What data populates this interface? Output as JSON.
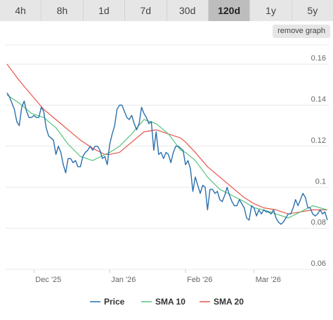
{
  "range_buttons": [
    {
      "label": "4h",
      "active": false
    },
    {
      "label": "8h",
      "active": false
    },
    {
      "label": "1d",
      "active": false
    },
    {
      "label": "7d",
      "active": false
    },
    {
      "label": "30d",
      "active": false
    },
    {
      "label": "120d",
      "active": true
    },
    {
      "label": "1y",
      "active": false
    },
    {
      "label": "5y",
      "active": false
    }
  ],
  "remove_graph_label": "remove graph",
  "colors": {
    "price": "#2a6fad",
    "sma10": "#55c27f",
    "sma20": "#e8534a",
    "grid": "#e8e8e8"
  },
  "chart_data": {
    "type": "line",
    "title": "",
    "xlabel": "",
    "ylabel": "",
    "ylim": [
      0.06,
      0.17
    ],
    "xlim": [
      "2025-11-20",
      "2026-03-31"
    ],
    "y_ticks": [
      0.06,
      0.08,
      0.1,
      0.12,
      0.14,
      0.16
    ],
    "y_tick_labels": [
      "0.06",
      "0.08",
      "0.1",
      "0.12",
      "0.14",
      "0.16"
    ],
    "x_ticks": [
      "2025-12-01",
      "2026-01-01",
      "2026-02-01",
      "2026-03-01"
    ],
    "x_tick_labels": [
      "Dec '25",
      "Jan '26",
      "Feb '26",
      "Mar '26"
    ],
    "legend_position": "bottom-center",
    "grid": true,
    "series": [
      {
        "name": "Price",
        "points": [
          [
            "2025-11-20",
            0.146
          ],
          [
            "2025-11-21",
            0.144
          ],
          [
            "2025-11-22",
            0.141
          ],
          [
            "2025-11-23",
            0.138
          ],
          [
            "2025-11-24",
            0.132
          ],
          [
            "2025-11-25",
            0.13
          ],
          [
            "2025-11-26",
            0.139
          ],
          [
            "2025-11-27",
            0.142
          ],
          [
            "2025-11-28",
            0.137
          ],
          [
            "2025-11-29",
            0.134
          ],
          [
            "2025-11-30",
            0.134
          ],
          [
            "2025-12-01",
            0.135
          ],
          [
            "2025-12-02",
            0.134
          ],
          [
            "2025-12-03",
            0.134
          ],
          [
            "2025-12-04",
            0.139
          ],
          [
            "2025-12-05",
            0.137
          ],
          [
            "2025-12-06",
            0.129
          ],
          [
            "2025-12-07",
            0.125
          ],
          [
            "2025-12-08",
            0.124
          ],
          [
            "2025-12-09",
            0.123
          ],
          [
            "2025-12-10",
            0.116
          ],
          [
            "2025-12-11",
            0.12
          ],
          [
            "2025-12-12",
            0.117
          ],
          [
            "2025-12-13",
            0.111
          ],
          [
            "2025-12-14",
            0.107
          ],
          [
            "2025-12-15",
            0.114
          ],
          [
            "2025-12-16",
            0.114
          ],
          [
            "2025-12-17",
            0.112
          ],
          [
            "2025-12-18",
            0.113
          ],
          [
            "2025-12-19",
            0.11
          ],
          [
            "2025-12-20",
            0.11
          ],
          [
            "2025-12-21",
            0.115
          ],
          [
            "2025-12-22",
            0.117
          ],
          [
            "2025-12-23",
            0.118
          ],
          [
            "2025-12-24",
            0.12
          ],
          [
            "2025-12-25",
            0.118
          ],
          [
            "2025-12-26",
            0.12
          ],
          [
            "2025-12-27",
            0.12
          ],
          [
            "2025-12-28",
            0.118
          ],
          [
            "2025-12-29",
            0.114
          ],
          [
            "2025-12-30",
            0.115
          ],
          [
            "2025-12-31",
            0.111
          ],
          [
            "2026-01-01",
            0.121
          ],
          [
            "2026-01-02",
            0.126
          ],
          [
            "2026-01-03",
            0.13
          ],
          [
            "2026-01-04",
            0.138
          ],
          [
            "2026-01-05",
            0.14
          ],
          [
            "2026-01-06",
            0.14
          ],
          [
            "2026-01-07",
            0.137
          ],
          [
            "2026-01-08",
            0.134
          ],
          [
            "2026-01-09",
            0.133
          ],
          [
            "2026-01-10",
            0.135
          ],
          [
            "2026-01-11",
            0.131
          ],
          [
            "2026-01-12",
            0.128
          ],
          [
            "2026-01-13",
            0.131
          ],
          [
            "2026-01-14",
            0.139
          ],
          [
            "2026-01-15",
            0.136
          ],
          [
            "2026-01-16",
            0.134
          ],
          [
            "2026-01-17",
            0.131
          ],
          [
            "2026-01-18",
            0.132
          ],
          [
            "2026-01-19",
            0.118
          ],
          [
            "2026-01-20",
            0.127
          ],
          [
            "2026-01-21",
            0.116
          ],
          [
            "2026-01-22",
            0.117
          ],
          [
            "2026-01-23",
            0.114
          ],
          [
            "2026-01-24",
            0.117
          ],
          [
            "2026-01-25",
            0.116
          ],
          [
            "2026-01-26",
            0.112
          ],
          [
            "2026-01-27",
            0.117
          ],
          [
            "2026-01-28",
            0.12
          ],
          [
            "2026-01-29",
            0.12
          ],
          [
            "2026-01-30",
            0.119
          ],
          [
            "2026-01-31",
            0.118
          ],
          [
            "2026-02-01",
            0.111
          ],
          [
            "2026-02-02",
            0.113
          ],
          [
            "2026-02-03",
            0.109
          ],
          [
            "2026-02-04",
            0.098
          ],
          [
            "2026-02-05",
            0.105
          ],
          [
            "2026-02-06",
            0.101
          ],
          [
            "2026-02-07",
            0.097
          ],
          [
            "2026-02-08",
            0.101
          ],
          [
            "2026-02-09",
            0.1
          ],
          [
            "2026-02-10",
            0.089
          ],
          [
            "2026-02-11",
            0.099
          ],
          [
            "2026-02-12",
            0.099
          ],
          [
            "2026-02-13",
            0.097
          ],
          [
            "2026-02-14",
            0.098
          ],
          [
            "2026-02-15",
            0.094
          ],
          [
            "2026-02-16",
            0.093
          ],
          [
            "2026-02-17",
            0.096
          ],
          [
            "2026-02-18",
            0.1
          ],
          [
            "2026-02-19",
            0.096
          ],
          [
            "2026-02-20",
            0.093
          ],
          [
            "2026-02-21",
            0.091
          ],
          [
            "2026-02-22",
            0.091
          ],
          [
            "2026-02-23",
            0.094
          ],
          [
            "2026-02-24",
            0.092
          ],
          [
            "2026-02-25",
            0.09
          ],
          [
            "2026-02-26",
            0.085
          ],
          [
            "2026-02-27",
            0.084
          ],
          [
            "2026-02-28",
            0.091
          ],
          [
            "2026-03-01",
            0.09
          ],
          [
            "2026-03-02",
            0.086
          ],
          [
            "2026-03-03",
            0.089
          ],
          [
            "2026-03-04",
            0.087
          ],
          [
            "2026-03-05",
            0.089
          ],
          [
            "2026-03-06",
            0.088
          ],
          [
            "2026-03-07",
            0.088
          ],
          [
            "2026-03-08",
            0.087
          ],
          [
            "2026-03-09",
            0.089
          ],
          [
            "2026-03-10",
            0.085
          ],
          [
            "2026-03-11",
            0.083
          ],
          [
            "2026-03-12",
            0.082
          ],
          [
            "2026-03-13",
            0.083
          ],
          [
            "2026-03-14",
            0.085
          ],
          [
            "2026-03-15",
            0.087
          ],
          [
            "2026-03-16",
            0.087
          ],
          [
            "2026-03-17",
            0.09
          ],
          [
            "2026-03-18",
            0.094
          ],
          [
            "2026-03-19",
            0.091
          ],
          [
            "2026-03-20",
            0.094
          ],
          [
            "2026-03-21",
            0.097
          ],
          [
            "2026-03-22",
            0.095
          ],
          [
            "2026-03-23",
            0.09
          ],
          [
            "2026-03-24",
            0.09
          ],
          [
            "2026-03-25",
            0.087
          ],
          [
            "2026-03-26",
            0.086
          ],
          [
            "2026-03-27",
            0.087
          ],
          [
            "2026-03-28",
            0.089
          ],
          [
            "2026-03-29",
            0.087
          ],
          [
            "2026-03-30",
            0.088
          ],
          [
            "2026-03-31",
            0.084
          ]
        ]
      },
      {
        "name": "SMA 10",
        "points": [
          [
            "2025-11-20",
            0.145
          ],
          [
            "2025-11-25",
            0.141
          ],
          [
            "2025-11-30",
            0.136
          ],
          [
            "2025-12-05",
            0.134
          ],
          [
            "2025-12-10",
            0.129
          ],
          [
            "2025-12-15",
            0.121
          ],
          [
            "2025-12-20",
            0.115
          ],
          [
            "2025-12-25",
            0.113
          ],
          [
            "2025-12-30",
            0.116
          ],
          [
            "2026-01-01",
            0.117
          ],
          [
            "2026-01-05",
            0.12
          ],
          [
            "2026-01-10",
            0.126
          ],
          [
            "2026-01-15",
            0.133
          ],
          [
            "2026-01-20",
            0.131
          ],
          [
            "2026-01-25",
            0.126
          ],
          [
            "2026-01-30",
            0.118
          ],
          [
            "2026-02-01",
            0.117
          ],
          [
            "2026-02-05",
            0.113
          ],
          [
            "2026-02-10",
            0.105
          ],
          [
            "2026-02-15",
            0.099
          ],
          [
            "2026-02-20",
            0.096
          ],
          [
            "2026-02-25",
            0.093
          ],
          [
            "2026-03-01",
            0.09
          ],
          [
            "2026-03-05",
            0.089
          ],
          [
            "2026-03-10",
            0.087
          ],
          [
            "2026-03-15",
            0.085
          ],
          [
            "2026-03-20",
            0.088
          ],
          [
            "2026-03-25",
            0.091
          ],
          [
            "2026-03-31",
            0.089
          ]
        ]
      },
      {
        "name": "SMA 20",
        "points": [
          [
            "2025-11-20",
            0.16
          ],
          [
            "2025-11-25",
            0.152
          ],
          [
            "2025-11-30",
            0.145
          ],
          [
            "2025-12-05",
            0.138
          ],
          [
            "2025-12-10",
            0.133
          ],
          [
            "2025-12-15",
            0.128
          ],
          [
            "2025-12-20",
            0.123
          ],
          [
            "2025-12-25",
            0.119
          ],
          [
            "2025-12-30",
            0.116
          ],
          [
            "2026-01-01",
            0.116
          ],
          [
            "2026-01-05",
            0.117
          ],
          [
            "2026-01-10",
            0.122
          ],
          [
            "2026-01-15",
            0.127
          ],
          [
            "2026-01-20",
            0.128
          ],
          [
            "2026-01-25",
            0.126
          ],
          [
            "2026-01-30",
            0.124
          ],
          [
            "2026-02-01",
            0.122
          ],
          [
            "2026-02-05",
            0.117
          ],
          [
            "2026-02-10",
            0.11
          ],
          [
            "2026-02-15",
            0.105
          ],
          [
            "2026-02-20",
            0.1
          ],
          [
            "2026-02-25",
            0.095
          ],
          [
            "2026-03-01",
            0.092
          ],
          [
            "2026-03-05",
            0.09
          ],
          [
            "2026-03-10",
            0.089
          ],
          [
            "2026-03-15",
            0.087
          ],
          [
            "2026-03-20",
            0.088
          ],
          [
            "2026-03-25",
            0.089
          ],
          [
            "2026-03-31",
            0.089
          ]
        ]
      }
    ]
  }
}
